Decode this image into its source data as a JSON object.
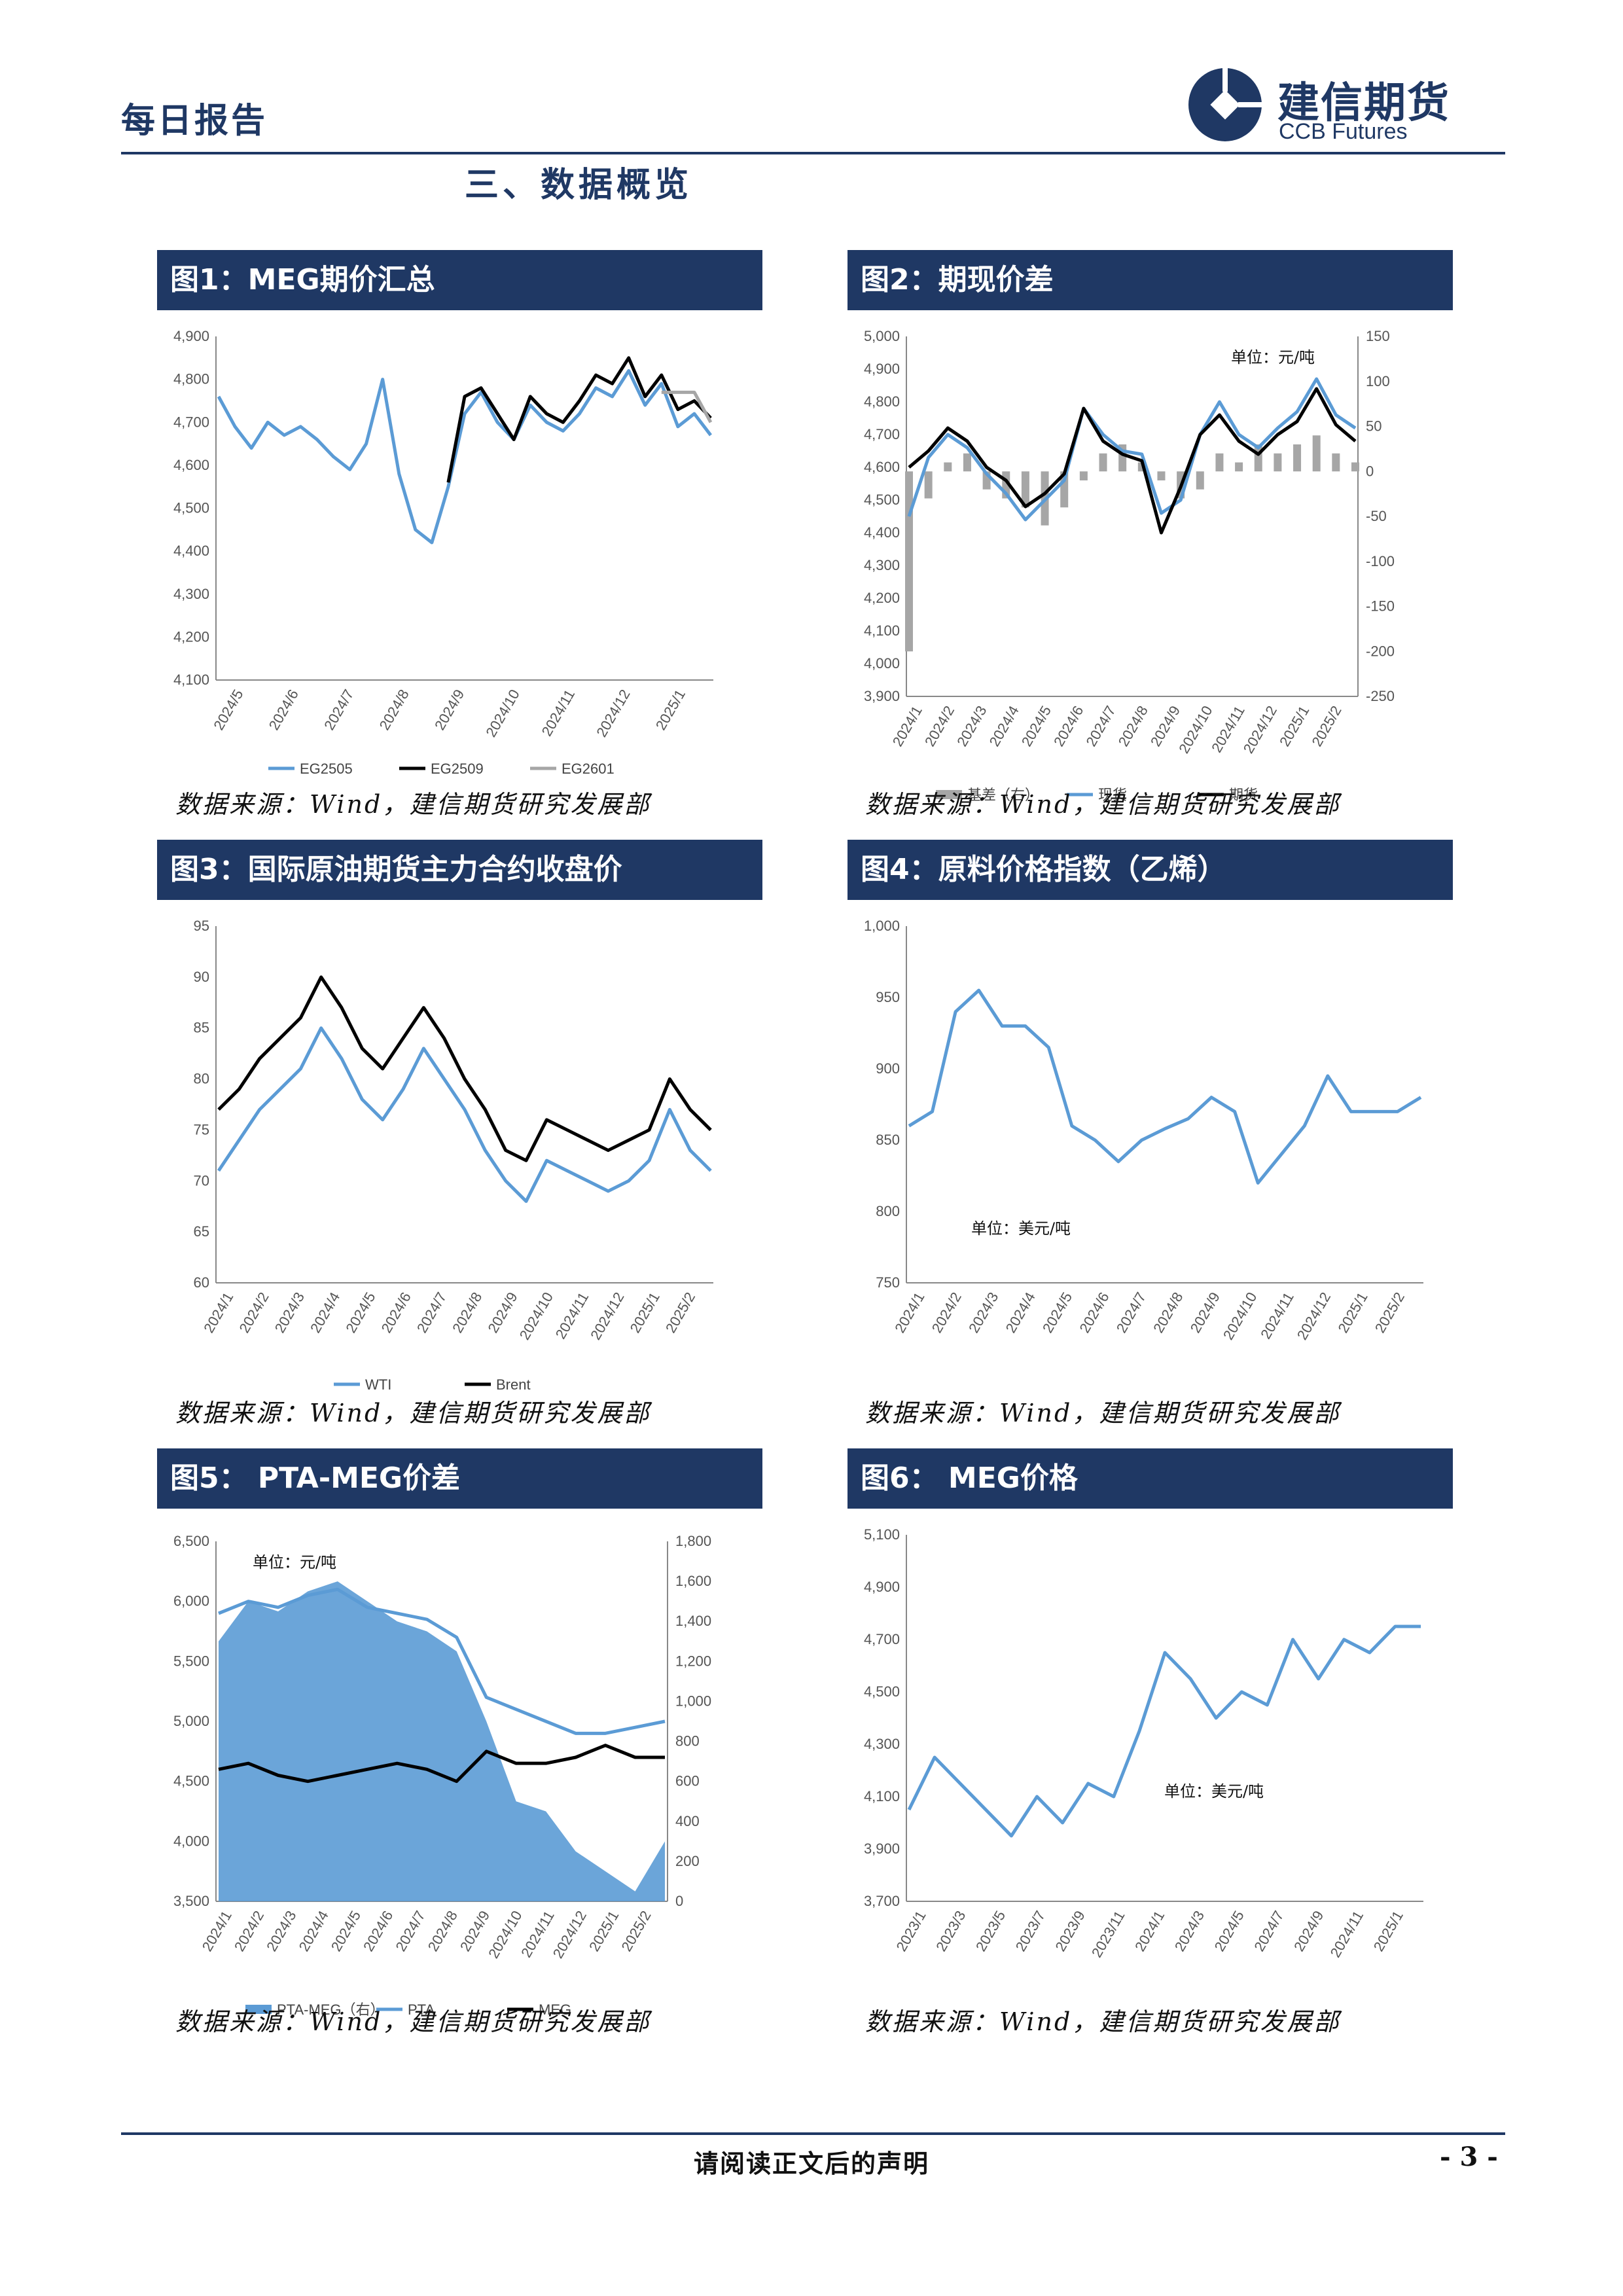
{
  "header": {
    "report_type": "每日报告",
    "logo_cn": "建信期货",
    "logo_en": "CCB Futures"
  },
  "section_title": "三、数据概览",
  "source_text": "数据来源：Wind，建信期货研究发展部",
  "footer": {
    "disclaimer": "请阅读正文后的声明",
    "page": "- 3 -"
  },
  "colors": {
    "navy": "#1f3864",
    "blue": "#5b9bd5",
    "black": "#000000",
    "gray": "#a6a6a6"
  },
  "chart_data": [
    {
      "id": "fig1",
      "title": "图1：MEG期价汇总",
      "type": "line",
      "ylim": [
        4100,
        4900
      ],
      "yticks": [
        "4,100",
        "4,200",
        "4,300",
        "4,400",
        "4,500",
        "4,600",
        "4,700",
        "4,800",
        "4,900"
      ],
      "xticks": [
        "2024/5",
        "2024/6",
        "2024/7",
        "2024/8",
        "2024/9",
        "2024/10",
        "2024/11",
        "2024/12",
        "2025/1"
      ],
      "legend_position": "bottom",
      "series": [
        {
          "name": "EG2505",
          "color": "#5b9bd5",
          "values": [
            4760,
            4690,
            4640,
            4700,
            4670,
            4690,
            4660,
            4620,
            4590,
            4650,
            4800,
            4580,
            4450,
            4420,
            4550,
            4720,
            4770,
            4700,
            4660,
            4740,
            4700,
            4680,
            4720,
            4780,
            4760,
            4820,
            4740,
            4790,
            4690,
            4720,
            4670
          ]
        },
        {
          "name": "EG2509",
          "color": "#000000",
          "values": [
            null,
            null,
            null,
            null,
            null,
            null,
            null,
            null,
            null,
            null,
            null,
            null,
            null,
            null,
            4560,
            4760,
            4780,
            4720,
            4660,
            4760,
            4720,
            4700,
            4750,
            4810,
            4790,
            4850,
            4760,
            4810,
            4730,
            4750,
            4710
          ]
        },
        {
          "name": "EG2601",
          "color": "#a6a6a6",
          "values": [
            null,
            null,
            null,
            null,
            null,
            null,
            null,
            null,
            null,
            null,
            null,
            null,
            null,
            null,
            null,
            null,
            null,
            null,
            null,
            null,
            null,
            null,
            null,
            null,
            null,
            null,
            null,
            4770,
            4770,
            4770,
            4700
          ]
        }
      ]
    },
    {
      "id": "fig2",
      "title": "图2：期现价差",
      "type": "line",
      "unit": "单位：元/吨",
      "ylim": [
        3900,
        5000
      ],
      "yticks": [
        "3,900",
        "4,000",
        "4,100",
        "4,200",
        "4,300",
        "4,400",
        "4,500",
        "4,600",
        "4,700",
        "4,800",
        "4,900",
        "5,000"
      ],
      "y2lim": [
        -250,
        150
      ],
      "y2ticks": [
        "-250",
        "-200",
        "-150",
        "-100",
        "-50",
        "0",
        "50",
        "100",
        "150"
      ],
      "xticks": [
        "2024/1",
        "2024/2",
        "2024/3",
        "2024/4",
        "2024/5",
        "2024/6",
        "2024/7",
        "2024/8",
        "2024/9",
        "2024/10",
        "2024/11",
        "2024/12",
        "2025/1",
        "2025/2"
      ],
      "legend_position": "bottom",
      "series": [
        {
          "name": "基差（右）",
          "color": "#a6a6a6",
          "axis": "right",
          "values": [
            -200,
            -30,
            10,
            20,
            -20,
            -30,
            -40,
            -60,
            -40,
            -10,
            20,
            30,
            10,
            -10,
            -30,
            -20,
            20,
            10,
            30,
            20,
            30,
            40,
            20,
            10
          ]
        },
        {
          "name": "现货",
          "color": "#5b9bd5",
          "values": [
            4450,
            4630,
            4700,
            4660,
            4580,
            4520,
            4440,
            4500,
            4560,
            4780,
            4700,
            4650,
            4640,
            4460,
            4500,
            4700,
            4800,
            4700,
            4660,
            4720,
            4770,
            4870,
            4760,
            4720
          ]
        },
        {
          "name": "期货",
          "color": "#000000",
          "values": [
            4600,
            4650,
            4720,
            4680,
            4600,
            4560,
            4480,
            4520,
            4580,
            4780,
            4680,
            4640,
            4620,
            4400,
            4540,
            4700,
            4760,
            4680,
            4640,
            4700,
            4740,
            4840,
            4730,
            4680
          ]
        }
      ]
    },
    {
      "id": "fig3",
      "title": "图3：国际原油期货主力合约收盘价",
      "type": "line",
      "ylim": [
        60,
        95
      ],
      "yticks": [
        "60",
        "65",
        "70",
        "75",
        "80",
        "85",
        "90",
        "95"
      ],
      "xticks": [
        "2024/1",
        "2024/2",
        "2024/3",
        "2024/4",
        "2024/5",
        "2024/6",
        "2024/7",
        "2024/8",
        "2024/9",
        "2024/10",
        "2024/11",
        "2024/12",
        "2025/1",
        "2025/2"
      ],
      "legend_position": "bottom",
      "series": [
        {
          "name": "WTI",
          "color": "#5b9bd5",
          "values": [
            71,
            74,
            77,
            79,
            81,
            85,
            82,
            78,
            76,
            79,
            83,
            80,
            77,
            73,
            70,
            68,
            72,
            71,
            70,
            69,
            70,
            72,
            77,
            73,
            71
          ]
        },
        {
          "name": "Brent",
          "color": "#000000",
          "values": [
            77,
            79,
            82,
            84,
            86,
            90,
            87,
            83,
            81,
            84,
            87,
            84,
            80,
            77,
            73,
            72,
            76,
            75,
            74,
            73,
            74,
            75,
            80,
            77,
            75
          ]
        }
      ]
    },
    {
      "id": "fig4",
      "title": "图4：原料价格指数（乙烯）",
      "type": "line",
      "unit": "单位：美元/吨",
      "ylim": [
        750,
        1000
      ],
      "yticks": [
        "750",
        "800",
        "850",
        "900",
        "950",
        "1,000"
      ],
      "xticks": [
        "2024/1",
        "2024/2",
        "2024/3",
        "2024/4",
        "2024/5",
        "2024/6",
        "2024/7",
        "2024/8",
        "2024/9",
        "2024/10",
        "2024/11",
        "2024/12",
        "2025/1",
        "2025/2"
      ],
      "series": [
        {
          "name": "乙烯",
          "color": "#5b9bd5",
          "values": [
            860,
            870,
            940,
            955,
            930,
            930,
            915,
            860,
            850,
            835,
            850,
            858,
            865,
            880,
            870,
            820,
            840,
            860,
            895,
            870,
            870,
            870,
            880
          ]
        }
      ]
    },
    {
      "id": "fig5",
      "title": "图5： PTA-MEG价差",
      "type": "area",
      "unit": "单位：元/吨",
      "ylim": [
        3500,
        6500
      ],
      "yticks": [
        "3,500",
        "4,000",
        "4,500",
        "5,000",
        "5,500",
        "6,000",
        "6,500"
      ],
      "y2lim": [
        0,
        1800
      ],
      "y2ticks": [
        "0",
        "200",
        "400",
        "600",
        "800",
        "1,000",
        "1,200",
        "1,400",
        "1,600",
        "1,800"
      ],
      "xticks": [
        "2024/1",
        "2024/2",
        "2024/3",
        "2024/4",
        "2024/5",
        "2024/6",
        "2024/7",
        "2024/8",
        "2024/9",
        "2024/10",
        "2024/11",
        "2024/12",
        "2025/1",
        "2025/2"
      ],
      "legend_position": "bottom",
      "series": [
        {
          "name": "PTA-MEG（右）",
          "color": "#5b9bd5",
          "axis": "right",
          "values": [
            1300,
            1500,
            1450,
            1550,
            1600,
            1500,
            1400,
            1350,
            1250,
            900,
            500,
            450,
            250,
            150,
            50,
            300
          ]
        },
        {
          "name": "PTA",
          "color": "#5b9bd5",
          "values": [
            5900,
            6000,
            5950,
            6050,
            6100,
            5950,
            5900,
            5850,
            5700,
            5200,
            5100,
            5000,
            4900,
            4900,
            4950,
            5000
          ]
        },
        {
          "name": "MEG",
          "color": "#000000",
          "values": [
            4600,
            4650,
            4550,
            4500,
            4550,
            4600,
            4650,
            4600,
            4500,
            4750,
            4650,
            4650,
            4700,
            4800,
            4700,
            4700
          ]
        }
      ]
    },
    {
      "id": "fig6",
      "title": "图6： MEG价格",
      "type": "line",
      "unit": "单位：美元/吨",
      "ylim": [
        3700,
        5100
      ],
      "yticks": [
        "3,700",
        "3,900",
        "4,100",
        "4,300",
        "4,500",
        "4,700",
        "4,900",
        "5,100"
      ],
      "xticks": [
        "2023/1",
        "2023/3",
        "2023/5",
        "2023/7",
        "2023/9",
        "2023/11",
        "2024/1",
        "2024/3",
        "2024/5",
        "2024/7",
        "2024/9",
        "2024/11",
        "2025/1"
      ],
      "series": [
        {
          "name": "MEG",
          "color": "#5b9bd5",
          "values": [
            4050,
            4250,
            4150,
            4050,
            3950,
            4100,
            4000,
            4150,
            4100,
            4350,
            4650,
            4550,
            4400,
            4500,
            4450,
            4700,
            4550,
            4700,
            4650,
            4750,
            4750
          ]
        }
      ]
    }
  ]
}
